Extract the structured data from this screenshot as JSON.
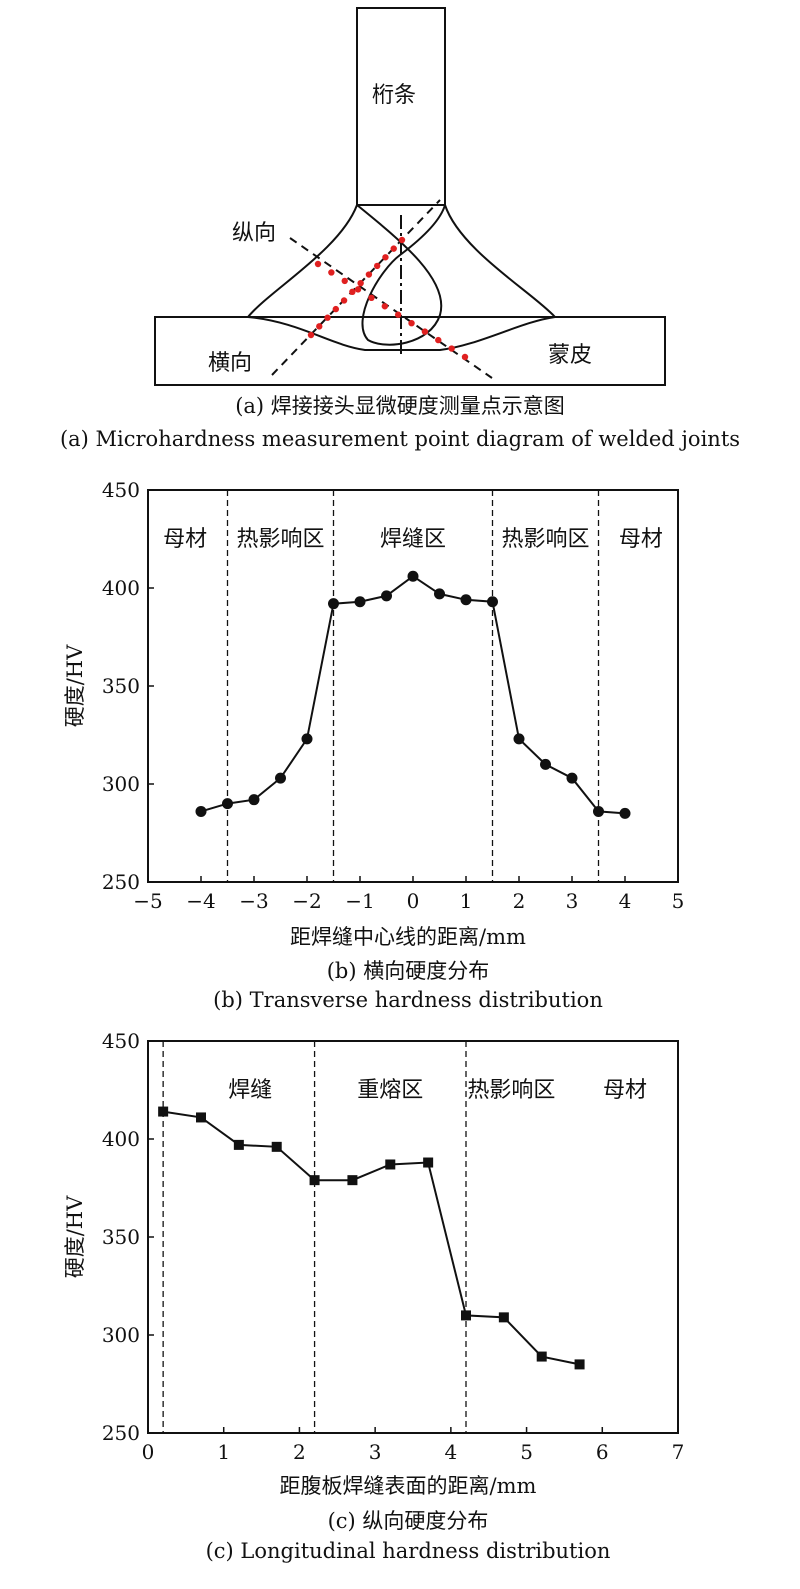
{
  "figure_a": {
    "labels": {
      "stringer": "桁条",
      "skin": "蒙皮",
      "longitudinal": "纵向",
      "transverse": "横向"
    },
    "caption_cn": "(a) 焊接接头显微硬度测量点示意图",
    "caption_en": "(a) Microhardness measurement point diagram of welded joints",
    "colors": {
      "points": "#e02020",
      "lines": "#111111"
    }
  },
  "chart_data": [
    {
      "type": "line",
      "marker": "circle",
      "ylabel": "硬度/HV",
      "xlabel": "距焊缝中心线的距离/mm",
      "caption_cn": "(b) 横向硬度分布",
      "caption_en": "(b) Transverse hardness distribution",
      "xlim": [
        -5,
        5
      ],
      "ylim": [
        250,
        450
      ],
      "xticks": [
        -5,
        -4,
        -3,
        -2,
        -1,
        0,
        1,
        2,
        3,
        4,
        5
      ],
      "xtick_labels": [
        "−5",
        "−4",
        "−3",
        "−2",
        "−1",
        "0",
        "1",
        "2",
        "3",
        "4",
        "5"
      ],
      "yticks": [
        250,
        300,
        350,
        400,
        450
      ],
      "dividers": [
        -3.5,
        -1.5,
        1.5,
        3.5
      ],
      "regions": [
        {
          "label": "母材",
          "x": -4.3
        },
        {
          "label": "热影响区",
          "x": -2.5
        },
        {
          "label": "焊缝区",
          "x": 0
        },
        {
          "label": "热影响区",
          "x": 2.5
        },
        {
          "label": "母材",
          "x": 4.3
        }
      ],
      "x": [
        -4,
        -3.5,
        -3,
        -2.5,
        -2,
        -1.5,
        -1,
        -0.5,
        0,
        0.5,
        1,
        1.5,
        2,
        2.5,
        3,
        3.5,
        4
      ],
      "y": [
        286,
        290,
        292,
        303,
        323,
        392,
        393,
        396,
        406,
        397,
        394,
        393,
        323,
        310,
        303,
        286,
        285
      ]
    },
    {
      "type": "line",
      "marker": "square",
      "ylabel": "硬度/HV",
      "xlabel": "距腹板焊缝表面的距离/mm",
      "caption_cn": "(c) 纵向硬度分布",
      "caption_en": "(c) Longitudinal hardness distribution",
      "xlim": [
        0,
        7
      ],
      "ylim": [
        250,
        450
      ],
      "xticks": [
        0,
        1,
        2,
        3,
        4,
        5,
        6,
        7
      ],
      "xtick_labels": [
        "0",
        "1",
        "2",
        "3",
        "4",
        "5",
        "6",
        "7"
      ],
      "yticks": [
        250,
        300,
        350,
        400,
        450
      ],
      "dividers": [
        0.2,
        2.2,
        4.2
      ],
      "regions": [
        {
          "label": "焊缝",
          "x": 1.35
        },
        {
          "label": "重熔区",
          "x": 3.2
        },
        {
          "label": "热影响区",
          "x": 4.8
        },
        {
          "label": "母材",
          "x": 6.3
        }
      ],
      "x": [
        0.2,
        0.7,
        1.2,
        1.7,
        2.2,
        2.7,
        3.2,
        3.7,
        4.2,
        4.7,
        5.2,
        5.7
      ],
      "y": [
        414,
        411,
        397,
        396,
        379,
        379,
        387,
        388,
        310,
        309,
        289,
        285
      ]
    }
  ]
}
